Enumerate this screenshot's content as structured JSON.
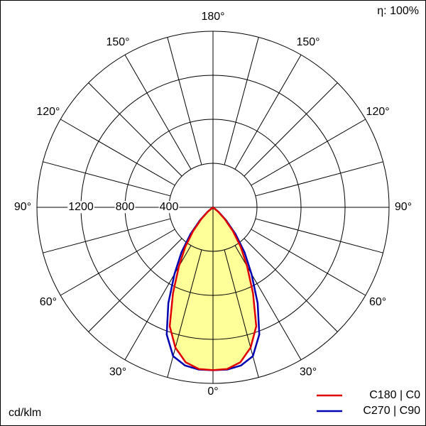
{
  "chart_data": {
    "type": "polar",
    "efficiency_label": "η: 100%",
    "unit_label": "cd/klm",
    "rlim": [
      0,
      1600
    ],
    "rticks": [
      400,
      800,
      1200
    ],
    "thetagrid": [
      0,
      15,
      30,
      45,
      60,
      75,
      90,
      105,
      120,
      135,
      150,
      165,
      180
    ],
    "thetaticks": [
      {
        "value": 0,
        "label": "0°"
      },
      {
        "value": 30,
        "label": "30°"
      },
      {
        "value": 60,
        "label": "60°"
      },
      {
        "value": 90,
        "label": "90°"
      },
      {
        "value": 120,
        "label": "120°"
      },
      {
        "value": 150,
        "label": "150°"
      },
      {
        "value": 180,
        "label": "180°"
      }
    ],
    "x": [
      -55,
      -50,
      -45,
      -40,
      -35,
      -30,
      -25,
      -20,
      -15,
      -10,
      -5,
      0,
      5,
      10,
      15,
      20,
      25,
      30,
      35,
      40,
      45,
      50,
      55
    ],
    "fill": "#ffff99",
    "series": [
      {
        "name": "C180 | C0",
        "color": "#e00000",
        "values": [
          0,
          60,
          150,
          280,
          440,
          620,
          860,
          1150,
          1320,
          1430,
          1475,
          1480,
          1475,
          1430,
          1320,
          1150,
          860,
          620,
          440,
          280,
          150,
          60,
          0
        ]
      },
      {
        "name": "C270 | C90",
        "color": "#0000b0",
        "values": [
          0,
          70,
          170,
          320,
          500,
          700,
          960,
          1230,
          1400,
          1460,
          1480,
          1480,
          1480,
          1460,
          1400,
          1230,
          960,
          700,
          500,
          320,
          170,
          70,
          0
        ]
      }
    ]
  }
}
